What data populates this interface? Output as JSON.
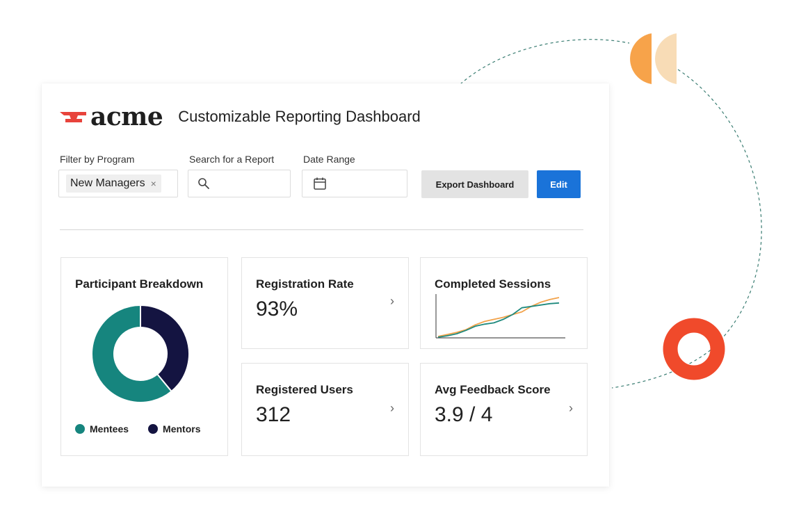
{
  "colors": {
    "mentees": "#16857e",
    "mentors": "#141441",
    "accent_blue": "#1a73d9",
    "logo_red": "#e8433b",
    "deco_orange": "#f7a34a",
    "deco_peach": "#f8dcb6",
    "deco_ring": "#f04a2b",
    "series_orange": "#f2a24a",
    "series_teal": "#1f8a7e"
  },
  "header": {
    "logo_text": "acme",
    "title": "Customizable Reporting Dashboard"
  },
  "filters": {
    "program_label": "Filter by Program",
    "program_chip": "New Managers",
    "chip_remove": "×",
    "search_label": "Search for a Report",
    "search_placeholder": "",
    "date_label": "Date Range"
  },
  "buttons": {
    "export": "Export Dashboard",
    "edit": "Edit"
  },
  "cards": {
    "participant": {
      "title": "Participant Breakdown",
      "legend_mentees": "Mentees",
      "legend_mentors": "Mentors"
    },
    "registration": {
      "title": "Registration Rate",
      "value": "93%",
      "chevron": "›"
    },
    "sessions": {
      "title": "Completed Sessions"
    },
    "users": {
      "title": "Registered Users",
      "value": "312",
      "chevron": "›"
    },
    "feedback": {
      "title": "Avg Feedback Score",
      "value": "3.9 / 4",
      "chevron": "›"
    }
  },
  "chart_data": [
    {
      "type": "pie",
      "donut": true,
      "categories": [
        "Mentees",
        "Mentors"
      ],
      "values": [
        61,
        39
      ],
      "legend": "bottom"
    },
    {
      "type": "line",
      "x": [
        1,
        2,
        3,
        4,
        5,
        6,
        7,
        8,
        9,
        10,
        11,
        12,
        13,
        14
      ],
      "series": [
        {
          "color": "#f2a24a",
          "values": [
            1,
            4,
            7,
            11,
            18,
            23,
            26,
            29,
            33,
            37,
            45,
            51,
            55,
            58
          ]
        },
        {
          "color": "#1f8a7e",
          "values": [
            0,
            2,
            5,
            10,
            16,
            19,
            21,
            26,
            33,
            43,
            45,
            47,
            49,
            50
          ]
        }
      ],
      "ylim": [
        0,
        60
      ],
      "grid": false
    }
  ]
}
